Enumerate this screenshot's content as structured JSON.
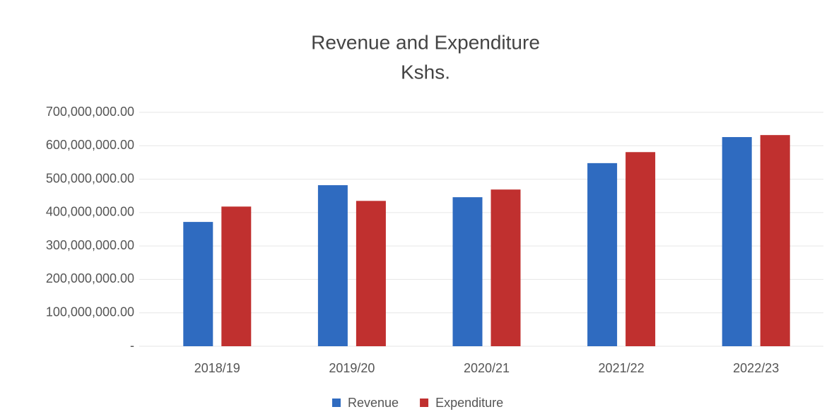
{
  "chart_data": {
    "type": "bar",
    "title": "Revenue and Expenditure",
    "subtitle": "Kshs.",
    "categories": [
      "2018/19",
      "2019/20",
      "2020/21",
      "2021/22",
      "2022/23"
    ],
    "series": [
      {
        "name": "Revenue",
        "color": "#2f6bc0",
        "values": [
          372000000,
          482000000,
          446000000,
          548000000,
          626000000
        ]
      },
      {
        "name": "Expenditure",
        "color": "#c0302f",
        "values": [
          418000000,
          435000000,
          469000000,
          581000000,
          632000000
        ]
      }
    ],
    "ylim": [
      0,
      700000000
    ],
    "yticks": [
      {
        "value": 0,
        "label": "-"
      },
      {
        "value": 100000000,
        "label": "100,000,000.00"
      },
      {
        "value": 200000000,
        "label": "200,000,000.00"
      },
      {
        "value": 300000000,
        "label": "300,000,000.00"
      },
      {
        "value": 400000000,
        "label": "400,000,000.00"
      },
      {
        "value": 500000000,
        "label": "500,000,000.00"
      },
      {
        "value": 600000000,
        "label": "600,000,000.00"
      },
      {
        "value": 700000000,
        "label": "700,000,000.00"
      }
    ],
    "grid": true,
    "legend": "bottom"
  }
}
